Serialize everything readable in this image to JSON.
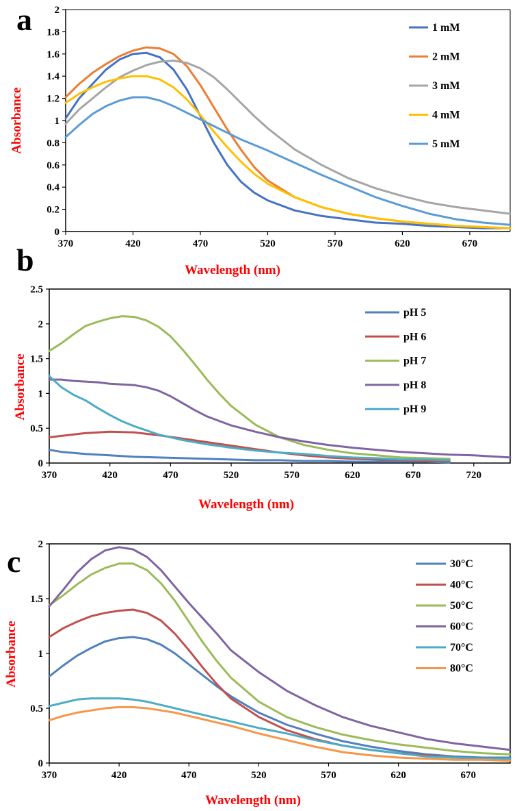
{
  "chart_data": [
    {
      "type": "line",
      "panel_label": "a",
      "xlabel": "Wavelength (nm)",
      "ylabel": "Absorbance",
      "xlim": [
        370,
        700
      ],
      "ylim": [
        0,
        2
      ],
      "xticks": [
        370,
        420,
        470,
        520,
        570,
        620,
        670
      ],
      "yticks": [
        0,
        0.2,
        0.4,
        0.6,
        0.8,
        1,
        1.2,
        1.4,
        1.6,
        1.8,
        2
      ],
      "ytick_labels": [
        "0",
        "0.2",
        "0.4",
        "0.6",
        "0.8",
        "1",
        "1.2",
        "1.4",
        "1.6",
        "1.8",
        "2"
      ],
      "legend_position": "top-right",
      "series": [
        {
          "name": "1 mM",
          "color": "#4472c4",
          "x": [
            370,
            380,
            390,
            400,
            410,
            420,
            430,
            440,
            450,
            460,
            470,
            480,
            490,
            500,
            510,
            520,
            540,
            560,
            580,
            600,
            620,
            640,
            660,
            680,
            700
          ],
          "y": [
            1.02,
            1.2,
            1.33,
            1.46,
            1.55,
            1.6,
            1.61,
            1.57,
            1.46,
            1.28,
            1.04,
            0.8,
            0.6,
            0.45,
            0.35,
            0.28,
            0.19,
            0.14,
            0.11,
            0.08,
            0.07,
            0.05,
            0.04,
            0.03,
            0.03
          ]
        },
        {
          "name": "2 mM",
          "color": "#ed7d31",
          "x": [
            370,
            380,
            390,
            400,
            410,
            420,
            430,
            440,
            450,
            460,
            470,
            480,
            490,
            500,
            510,
            520,
            540,
            560,
            580,
            600,
            620,
            640,
            660,
            680,
            700
          ],
          "y": [
            1.21,
            1.33,
            1.43,
            1.51,
            1.58,
            1.63,
            1.66,
            1.65,
            1.6,
            1.49,
            1.32,
            1.12,
            0.92,
            0.74,
            0.58,
            0.46,
            0.31,
            0.22,
            0.16,
            0.12,
            0.09,
            0.07,
            0.05,
            0.04,
            0.03
          ]
        },
        {
          "name": "3 mM",
          "color": "#a5a5a5",
          "x": [
            370,
            380,
            390,
            400,
            410,
            420,
            430,
            440,
            450,
            460,
            470,
            480,
            490,
            500,
            510,
            520,
            540,
            560,
            580,
            600,
            620,
            640,
            660,
            680,
            700
          ],
          "y": [
            0.97,
            1.1,
            1.2,
            1.3,
            1.39,
            1.45,
            1.5,
            1.53,
            1.54,
            1.52,
            1.47,
            1.39,
            1.28,
            1.16,
            1.04,
            0.93,
            0.74,
            0.6,
            0.48,
            0.39,
            0.32,
            0.26,
            0.22,
            0.19,
            0.16
          ]
        },
        {
          "name": "4 mM",
          "color": "#ffc000",
          "x": [
            370,
            380,
            390,
            400,
            410,
            420,
            430,
            440,
            450,
            460,
            470,
            480,
            490,
            500,
            510,
            520,
            540,
            560,
            580,
            600,
            620,
            640,
            660,
            680,
            700
          ],
          "y": [
            1.16,
            1.24,
            1.3,
            1.35,
            1.38,
            1.4,
            1.4,
            1.37,
            1.3,
            1.19,
            1.05,
            0.9,
            0.76,
            0.63,
            0.52,
            0.43,
            0.31,
            0.22,
            0.16,
            0.12,
            0.09,
            0.07,
            0.05,
            0.04,
            0.03
          ]
        },
        {
          "name": "5 mM",
          "color": "#5b9bd5",
          "x": [
            370,
            380,
            390,
            400,
            410,
            420,
            430,
            440,
            450,
            460,
            470,
            480,
            490,
            500,
            510,
            520,
            540,
            560,
            580,
            600,
            620,
            640,
            660,
            680,
            700
          ],
          "y": [
            0.85,
            0.96,
            1.06,
            1.13,
            1.18,
            1.21,
            1.21,
            1.18,
            1.13,
            1.07,
            1.01,
            0.95,
            0.89,
            0.83,
            0.78,
            0.73,
            0.62,
            0.51,
            0.41,
            0.31,
            0.23,
            0.16,
            0.11,
            0.08,
            0.06
          ]
        }
      ]
    },
    {
      "type": "line",
      "panel_label": "b",
      "xlabel": "Wavelength (nm)",
      "ylabel": "Absorbance",
      "xlim": [
        370,
        750
      ],
      "ylim": [
        0,
        2.5
      ],
      "xticks": [
        370,
        420,
        470,
        520,
        570,
        620,
        670,
        720
      ],
      "yticks": [
        0,
        0.5,
        1,
        1.5,
        2,
        2.5
      ],
      "ytick_labels": [
        "0",
        "0.5",
        "1",
        "1.5",
        "2",
        "2.5"
      ],
      "legend_position": "top-right",
      "series": [
        {
          "name": "pH 5",
          "color": "#4f81bd",
          "x": [
            370,
            380,
            400,
            420,
            440,
            460,
            480,
            500,
            520,
            540,
            560,
            580,
            600,
            620,
            640,
            660,
            680,
            700
          ],
          "y": [
            0.19,
            0.16,
            0.13,
            0.11,
            0.09,
            0.08,
            0.07,
            0.06,
            0.05,
            0.04,
            0.04,
            0.03,
            0.03,
            0.02,
            0.02,
            0.02,
            0.02,
            0.01
          ]
        },
        {
          "name": "pH 6",
          "color": "#c0504d",
          "x": [
            370,
            380,
            400,
            420,
            440,
            460,
            480,
            500,
            520,
            540,
            560,
            580,
            600,
            620,
            640,
            660,
            680,
            700
          ],
          "y": [
            0.37,
            0.39,
            0.43,
            0.45,
            0.44,
            0.4,
            0.35,
            0.3,
            0.25,
            0.2,
            0.15,
            0.11,
            0.08,
            0.06,
            0.05,
            0.04,
            0.03,
            0.03
          ]
        },
        {
          "name": "pH 7",
          "color": "#9bbb59",
          "x": [
            370,
            380,
            390,
            400,
            410,
            420,
            430,
            440,
            450,
            460,
            470,
            480,
            490,
            500,
            510,
            520,
            540,
            560,
            580,
            600,
            620,
            640,
            660,
            680,
            700
          ],
          "y": [
            1.61,
            1.72,
            1.85,
            1.97,
            2.03,
            2.08,
            2.11,
            2.1,
            2.05,
            1.96,
            1.82,
            1.63,
            1.42,
            1.2,
            1.0,
            0.82,
            0.55,
            0.37,
            0.26,
            0.19,
            0.14,
            0.11,
            0.08,
            0.07,
            0.06
          ]
        },
        {
          "name": "pH 8",
          "color": "#8064a2",
          "x": [
            370,
            380,
            390,
            400,
            410,
            420,
            430,
            440,
            450,
            460,
            470,
            480,
            490,
            500,
            520,
            540,
            560,
            580,
            600,
            620,
            640,
            660,
            680,
            700,
            720,
            750
          ],
          "y": [
            1.2,
            1.2,
            1.18,
            1.17,
            1.16,
            1.14,
            1.13,
            1.12,
            1.09,
            1.04,
            0.96,
            0.86,
            0.76,
            0.67,
            0.54,
            0.45,
            0.37,
            0.31,
            0.26,
            0.22,
            0.19,
            0.16,
            0.14,
            0.12,
            0.11,
            0.08
          ]
        },
        {
          "name": "pH 9",
          "color": "#4bacc6",
          "x": [
            370,
            380,
            390,
            400,
            410,
            420,
            430,
            440,
            460,
            480,
            500,
            520,
            540,
            560,
            580,
            600,
            620,
            640,
            660,
            680,
            700
          ],
          "y": [
            1.25,
            1.09,
            0.98,
            0.9,
            0.79,
            0.69,
            0.6,
            0.53,
            0.41,
            0.33,
            0.27,
            0.22,
            0.18,
            0.15,
            0.13,
            0.1,
            0.08,
            0.07,
            0.05,
            0.05,
            0.04
          ]
        }
      ]
    },
    {
      "type": "line",
      "panel_label": "c",
      "xlabel": "Wavelength (nm)",
      "ylabel": "Absorbance",
      "xlim": [
        370,
        700
      ],
      "ylim": [
        0,
        2
      ],
      "xticks": [
        370,
        420,
        470,
        520,
        570,
        620,
        670
      ],
      "yticks": [
        0,
        0.5,
        1,
        1.5,
        2
      ],
      "ytick_labels": [
        "0",
        "0.5",
        "1",
        "1.5",
        "2"
      ],
      "legend_position": "top-right",
      "series": [
        {
          "name": "30°C",
          "color": "#4f81bd",
          "x": [
            370,
            380,
            390,
            400,
            410,
            420,
            430,
            440,
            450,
            460,
            470,
            480,
            490,
            500,
            520,
            540,
            560,
            580,
            600,
            620,
            640,
            660,
            680,
            700
          ],
          "y": [
            0.79,
            0.89,
            0.98,
            1.05,
            1.11,
            1.14,
            1.15,
            1.13,
            1.08,
            1.0,
            0.9,
            0.8,
            0.7,
            0.61,
            0.46,
            0.35,
            0.27,
            0.2,
            0.15,
            0.11,
            0.08,
            0.06,
            0.05,
            0.05
          ]
        },
        {
          "name": "40°C",
          "color": "#c0504d",
          "x": [
            370,
            380,
            390,
            400,
            410,
            420,
            430,
            440,
            450,
            460,
            470,
            480,
            490,
            500,
            520,
            540,
            560,
            580,
            600,
            620,
            640,
            660,
            680,
            700
          ],
          "y": [
            1.15,
            1.23,
            1.29,
            1.34,
            1.37,
            1.39,
            1.4,
            1.37,
            1.3,
            1.18,
            1.03,
            0.87,
            0.72,
            0.59,
            0.42,
            0.3,
            0.22,
            0.16,
            0.12,
            0.09,
            0.07,
            0.05,
            0.04,
            0.04
          ]
        },
        {
          "name": "50°C",
          "color": "#9bbb59",
          "x": [
            370,
            380,
            390,
            400,
            410,
            420,
            430,
            440,
            450,
            460,
            470,
            480,
            490,
            500,
            520,
            540,
            560,
            580,
            600,
            620,
            640,
            660,
            680,
            700
          ],
          "y": [
            1.44,
            1.53,
            1.63,
            1.72,
            1.78,
            1.82,
            1.82,
            1.76,
            1.64,
            1.48,
            1.29,
            1.1,
            0.93,
            0.78,
            0.56,
            0.42,
            0.33,
            0.26,
            0.21,
            0.17,
            0.14,
            0.11,
            0.09,
            0.08
          ]
        },
        {
          "name": "60°C",
          "color": "#8064a2",
          "x": [
            370,
            380,
            390,
            400,
            410,
            420,
            430,
            440,
            450,
            460,
            470,
            480,
            490,
            500,
            520,
            540,
            560,
            580,
            600,
            620,
            640,
            660,
            680,
            700
          ],
          "y": [
            1.43,
            1.58,
            1.74,
            1.86,
            1.94,
            1.97,
            1.95,
            1.88,
            1.76,
            1.61,
            1.46,
            1.32,
            1.18,
            1.03,
            0.83,
            0.66,
            0.53,
            0.42,
            0.34,
            0.28,
            0.22,
            0.18,
            0.15,
            0.12
          ]
        },
        {
          "name": "70°C",
          "color": "#4bacc6",
          "x": [
            370,
            380,
            390,
            400,
            410,
            420,
            430,
            440,
            450,
            460,
            470,
            480,
            490,
            500,
            520,
            540,
            560,
            580,
            600,
            620,
            640,
            660,
            680,
            700
          ],
          "y": [
            0.52,
            0.55,
            0.58,
            0.59,
            0.59,
            0.59,
            0.58,
            0.56,
            0.53,
            0.5,
            0.47,
            0.44,
            0.41,
            0.38,
            0.32,
            0.27,
            0.21,
            0.16,
            0.12,
            0.09,
            0.06,
            0.05,
            0.04,
            0.04
          ]
        },
        {
          "name": "80°C",
          "color": "#f79646",
          "x": [
            370,
            380,
            390,
            400,
            410,
            420,
            430,
            440,
            450,
            460,
            470,
            480,
            490,
            500,
            520,
            540,
            560,
            580,
            600,
            620,
            640,
            660,
            680,
            700
          ],
          "y": [
            0.39,
            0.43,
            0.46,
            0.48,
            0.5,
            0.51,
            0.51,
            0.5,
            0.48,
            0.46,
            0.43,
            0.4,
            0.37,
            0.34,
            0.27,
            0.21,
            0.15,
            0.1,
            0.07,
            0.05,
            0.04,
            0.03,
            0.03,
            0.02
          ]
        }
      ]
    }
  ]
}
